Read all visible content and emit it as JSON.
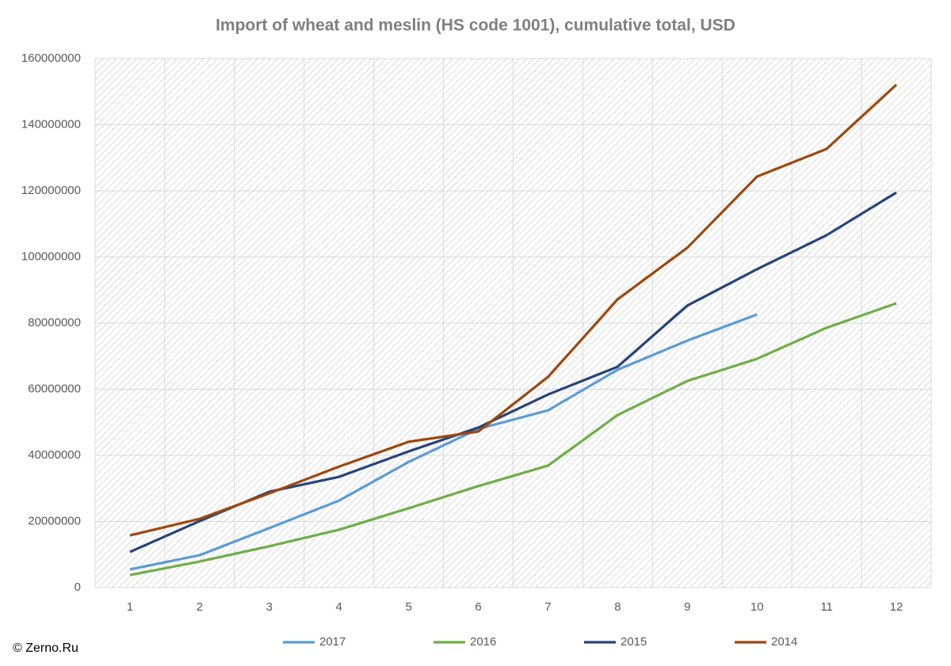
{
  "chart_data": {
    "type": "line",
    "title": "Import of wheat and meslin (HS code 1001), cumulative total, USD",
    "source": "© Zerno.Ru",
    "categories": [
      1,
      2,
      3,
      4,
      5,
      6,
      7,
      8,
      9,
      10,
      11,
      12
    ],
    "series": [
      {
        "name": "2017",
        "color": "#5b9bd5",
        "values": [
          5500000,
          9800000,
          18000000,
          26300000,
          38000000,
          48000000,
          53600000,
          65900000,
          74700000,
          82600000,
          null,
          null
        ]
      },
      {
        "name": "2016",
        "color": "#70ad47",
        "values": [
          3800000,
          7900000,
          12500000,
          17500000,
          24000000,
          30700000,
          36900000,
          52200000,
          62500000,
          69200000,
          78600000,
          86000000
        ]
      },
      {
        "name": "2015",
        "color": "#264478",
        "values": [
          10800000,
          20100000,
          29000000,
          33500000,
          41200000,
          48400000,
          58400000,
          66800000,
          85300000,
          96300000,
          106600000,
          119500000
        ]
      },
      {
        "name": "2014",
        "color": "#9e480e",
        "values": [
          15800000,
          20800000,
          28500000,
          36600000,
          44100000,
          47200000,
          63700000,
          87200000,
          102800000,
          124300000,
          132700000,
          152100000
        ]
      }
    ],
    "ylim": [
      0,
      160000000
    ],
    "yticks": [
      0,
      20000000,
      40000000,
      60000000,
      80000000,
      100000000,
      120000000,
      140000000,
      160000000
    ],
    "grid": true,
    "legend": "bottom"
  }
}
